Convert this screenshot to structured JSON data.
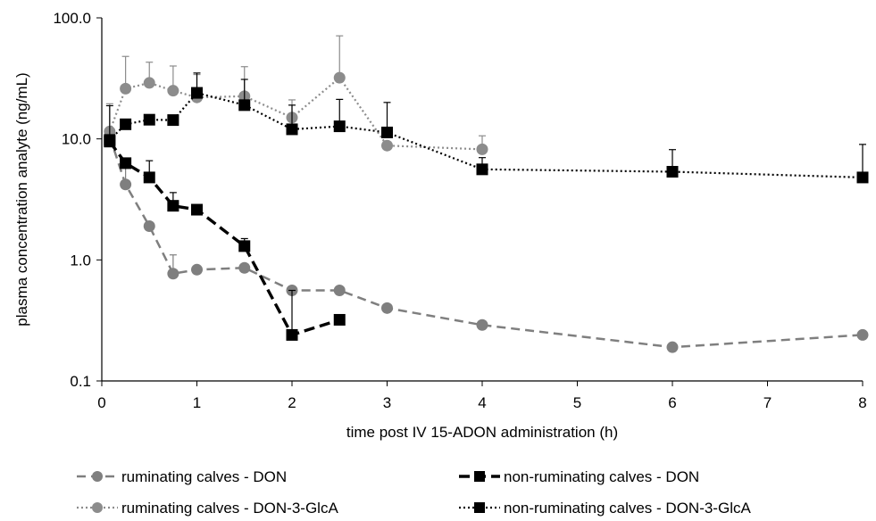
{
  "chart_data": {
    "type": "line",
    "title": "",
    "xlabel": "time post  IV 15-ADON administration (h)",
    "ylabel": "plasma concentration analyte (ng/mL)",
    "xlim": [
      0,
      8
    ],
    "ylim": [
      0.1,
      100
    ],
    "yscale": "log",
    "grid": false,
    "legend_position": "bottom",
    "x_ticks": [
      0,
      1,
      2,
      3,
      4,
      5,
      6,
      7,
      8
    ],
    "x_tick_labels": [
      "0",
      "1",
      "2",
      "3",
      "4",
      "5",
      "6",
      "7",
      "8"
    ],
    "y_ticks": [
      0.1,
      1,
      10,
      100
    ],
    "y_tick_labels": [
      "0.1",
      "1.0",
      "10.0",
      "100.0"
    ],
    "series": [
      {
        "name": "ruminating calves - DON",
        "color": "#7f7f7f",
        "line_style": "dashed",
        "marker": "circle",
        "points": [
          {
            "x": 0.083,
            "y": 10.5,
            "err": 0
          },
          {
            "x": 0.25,
            "y": 4.2,
            "err": 2.0
          },
          {
            "x": 0.5,
            "y": 1.9,
            "err": 0
          },
          {
            "x": 0.75,
            "y": 0.77,
            "err": 0.33
          },
          {
            "x": 1,
            "y": 0.83,
            "err": 0
          },
          {
            "x": 1.5,
            "y": 0.86,
            "err": 0
          },
          {
            "x": 2,
            "y": 0.56,
            "err": 0
          },
          {
            "x": 2.5,
            "y": 0.56,
            "err": 0
          },
          {
            "x": 3,
            "y": 0.4,
            "err": 0
          },
          {
            "x": 4,
            "y": 0.29,
            "err": 0
          },
          {
            "x": 6,
            "y": 0.19,
            "err": 0
          },
          {
            "x": 8,
            "y": 0.24,
            "err": 0
          }
        ]
      },
      {
        "name": "non-ruminating calves - DON",
        "color": "#000000",
        "line_style": "dashed-bold",
        "marker": "square",
        "points": [
          {
            "x": 0.083,
            "y": 9.5,
            "err": 0
          },
          {
            "x": 0.25,
            "y": 6.3,
            "err": 0
          },
          {
            "x": 0.5,
            "y": 4.8,
            "err": 1.8
          },
          {
            "x": 0.75,
            "y": 2.8,
            "err": 0.8
          },
          {
            "x": 1,
            "y": 2.6,
            "err": 0
          },
          {
            "x": 1.5,
            "y": 1.3,
            "err": 0.2
          },
          {
            "x": 2,
            "y": 0.24,
            "err": 0.32
          },
          {
            "x": 2.5,
            "y": 0.32,
            "err": 0
          }
        ]
      },
      {
        "name": "ruminating calves - DON-3-GlcA",
        "color": "#8c8c8c",
        "line_style": "dotted",
        "marker": "circle",
        "points": [
          {
            "x": 0.083,
            "y": 11.5,
            "err": 8.0
          },
          {
            "x": 0.25,
            "y": 26,
            "err": 22
          },
          {
            "x": 0.5,
            "y": 29,
            "err": 14
          },
          {
            "x": 0.75,
            "y": 25,
            "err": 15
          },
          {
            "x": 1,
            "y": 22,
            "err": 12
          },
          {
            "x": 1.5,
            "y": 22.5,
            "err": 17
          },
          {
            "x": 2,
            "y": 15,
            "err": 6
          },
          {
            "x": 2.5,
            "y": 32,
            "err": 39
          },
          {
            "x": 3,
            "y": 8.8,
            "err": 0
          },
          {
            "x": 4,
            "y": 8.2,
            "err": 2.4
          }
        ]
      },
      {
        "name": "non-ruminating calves - DON-3-GlcA",
        "color": "#000000",
        "line_style": "dotted",
        "marker": "square",
        "points": [
          {
            "x": 0.083,
            "y": 9.8,
            "err": 9.0
          },
          {
            "x": 0.25,
            "y": 13.2,
            "err": 0
          },
          {
            "x": 0.5,
            "y": 14.4,
            "err": 0
          },
          {
            "x": 0.75,
            "y": 14.3,
            "err": 0
          },
          {
            "x": 1,
            "y": 24,
            "err": 11
          },
          {
            "x": 1.5,
            "y": 19,
            "err": 12
          },
          {
            "x": 2,
            "y": 12,
            "err": 7
          },
          {
            "x": 2.5,
            "y": 12.7,
            "err": 8.5
          },
          {
            "x": 3,
            "y": 11.3,
            "err": 8.7
          },
          {
            "x": 4,
            "y": 5.6,
            "err": 1.4
          },
          {
            "x": 6,
            "y": 5.35,
            "err": 2.8
          },
          {
            "x": 8,
            "y": 4.8,
            "err": 4.2
          }
        ]
      }
    ]
  }
}
